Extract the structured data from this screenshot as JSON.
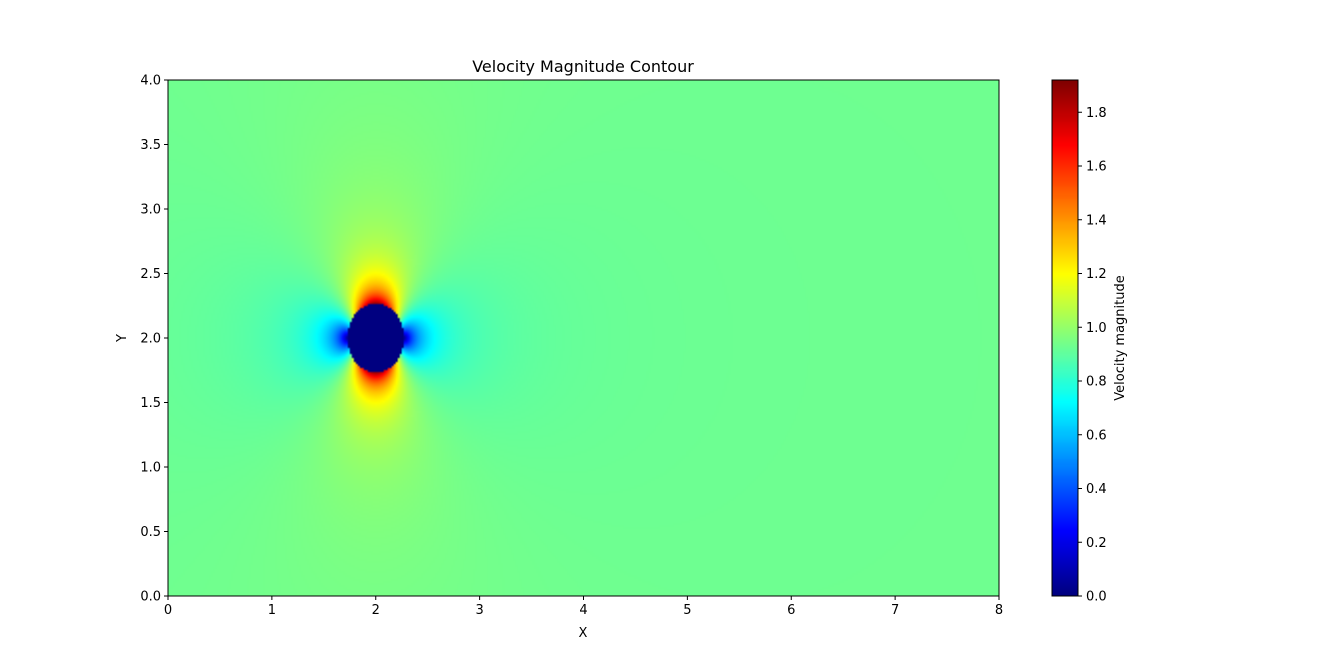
{
  "chart_data": {
    "type": "heatmap",
    "subtype": "contour",
    "title": "Velocity Magnitude Contour",
    "xlabel": "X",
    "ylabel": "Y",
    "xlim": [
      0,
      8
    ],
    "ylim": [
      0,
      4
    ],
    "x_ticks": [
      0,
      1,
      2,
      3,
      4,
      5,
      6,
      7,
      8
    ],
    "x_tick_labels": [
      "0",
      "1",
      "2",
      "3",
      "4",
      "5",
      "6",
      "7",
      "8"
    ],
    "y_ticks": [
      0.0,
      0.5,
      1.0,
      1.5,
      2.0,
      2.5,
      3.0,
      3.5,
      4.0
    ],
    "y_tick_labels": [
      "0.0",
      "0.5",
      "1.0",
      "1.5",
      "2.0",
      "2.5",
      "3.0",
      "3.5",
      "4.0"
    ],
    "colormap": "jet",
    "colorbar": {
      "label": "Velocity magnitude",
      "range": [
        0.0,
        1.92
      ],
      "ticks": [
        0.0,
        0.2,
        0.4,
        0.6,
        0.8,
        1.0,
        1.2,
        1.4,
        1.6,
        1.8
      ],
      "tick_labels": [
        "0.0",
        "0.2",
        "0.4",
        "0.6",
        "0.8",
        "1.0",
        "1.2",
        "1.4",
        "1.6",
        "1.8"
      ]
    },
    "field": {
      "freestream_velocity": 1.0,
      "obstacle": {
        "shape": "circle",
        "center": [
          2.0,
          2.0
        ],
        "radius": 0.27,
        "velocity": 0.0
      },
      "max_velocity": 1.92
    },
    "grid": false
  }
}
